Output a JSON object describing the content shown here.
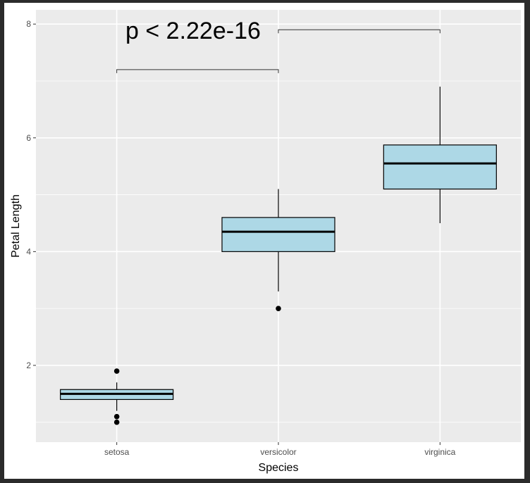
{
  "chart_data": {
    "type": "boxplot",
    "title": "",
    "xlabel": "Species",
    "ylabel": "Petal Length",
    "categories": [
      "setosa",
      "versicolor",
      "virginica"
    ],
    "ylim": [
      0.65,
      8.25
    ],
    "yticks": [
      2,
      4,
      6,
      8
    ],
    "y_tick_labels": [
      "2",
      "4",
      "6",
      "8"
    ],
    "grid": true,
    "boxes": [
      {
        "name": "setosa",
        "whisker_low": 1.2,
        "q1": 1.4,
        "median": 1.5,
        "q3": 1.575,
        "whisker_high": 1.7,
        "outliers": [
          1.9,
          1.1,
          1.0
        ]
      },
      {
        "name": "versicolor",
        "whisker_low": 3.3,
        "q1": 4.0,
        "median": 4.35,
        "q3": 4.6,
        "whisker_high": 5.1,
        "outliers": [
          3.0
        ]
      },
      {
        "name": "virginica",
        "whisker_low": 4.5,
        "q1": 5.1,
        "median": 5.55,
        "q3": 5.875,
        "whisker_high": 6.9,
        "outliers": []
      }
    ],
    "comparisons": [
      {
        "groups": [
          "setosa",
          "versicolor"
        ],
        "y": 7.2
      },
      {
        "groups": [
          "versicolor",
          "virginica"
        ],
        "y": 7.9
      }
    ],
    "annotation": "p < 2.22e-16",
    "colors": {
      "box_fill": "#add8e6",
      "panel": "#ebebeb",
      "grid": "#ffffff",
      "stroke": "#000000"
    }
  }
}
